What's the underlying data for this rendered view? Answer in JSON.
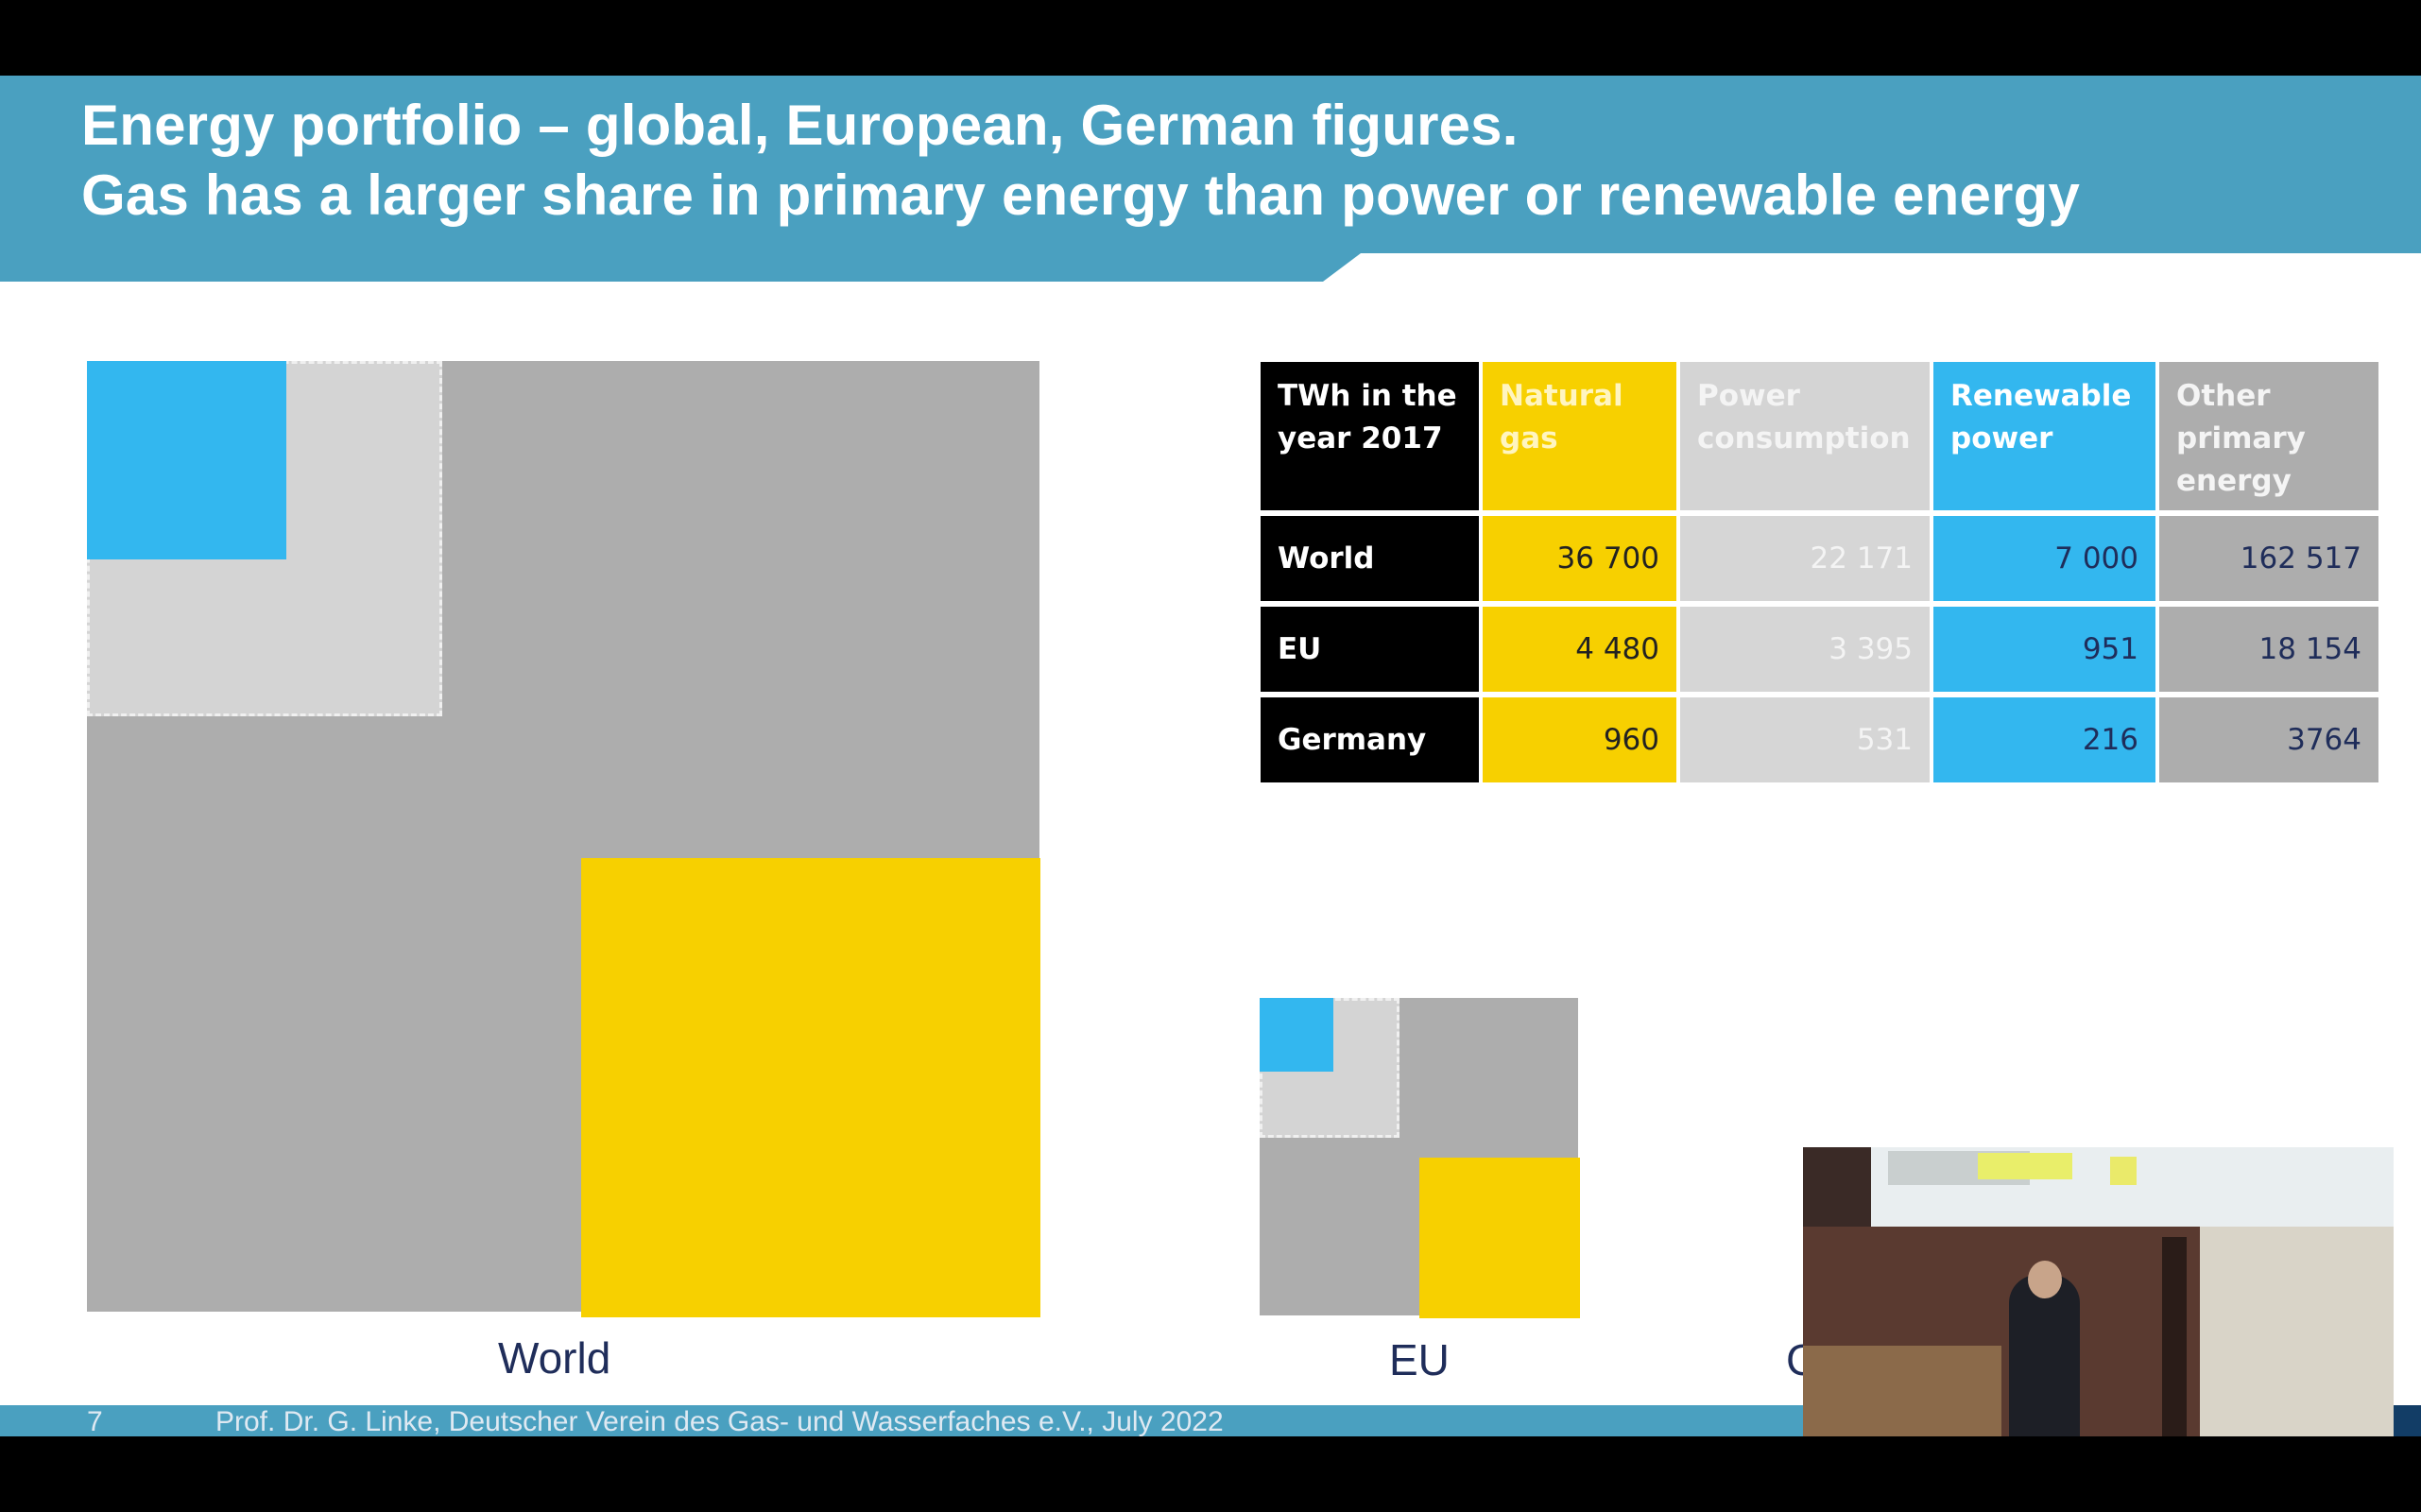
{
  "header": {
    "title_line1": "Energy portfolio – global, European, German figures.",
    "title_line2": "Gas has a larger share in primary energy than power or renewable energy"
  },
  "colors": {
    "header_band": "#4aa0c0",
    "natural_gas": "#f7d000",
    "power_consumption": "#d4d4d4",
    "renewable_power": "#33b7ef",
    "other_primary_energy": "#adadad",
    "footer_dark": "#123d66"
  },
  "table": {
    "corner": "TWh in the year 2017",
    "columns": [
      "Natural gas",
      "Power consumption",
      "Renewable power",
      "Other primary energy"
    ],
    "rows": [
      {
        "label": "World",
        "values": [
          "36 700",
          "22 171",
          "7 000",
          "162 517"
        ]
      },
      {
        "label": "EU",
        "values": [
          "4 480",
          "3 395",
          "951",
          "18 154"
        ]
      },
      {
        "label": "Germany",
        "values": [
          "960",
          "531",
          "216",
          "3764"
        ]
      }
    ]
  },
  "charts": {
    "world_label": "World",
    "eu_label": "EU",
    "germany_label_partial": "G"
  },
  "footer": {
    "page_number": "7",
    "credit": "Prof. Dr. G. Linke, Deutscher Verein des Gas- und Wasserfaches e.V., July 2022"
  },
  "video_inset": {
    "description_icon": "speaker-video-icon"
  }
}
